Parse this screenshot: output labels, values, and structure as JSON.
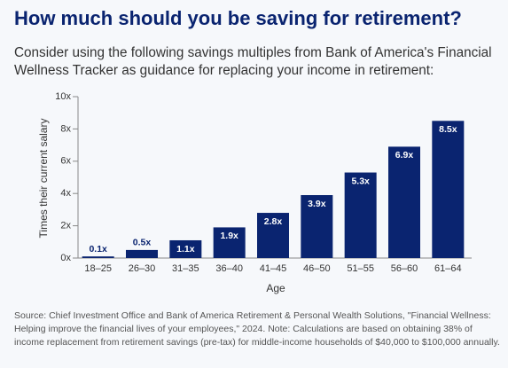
{
  "chart_data": {
    "type": "bar",
    "title": "How much should you be saving for retirement?",
    "subtitle": "Consider using the following savings multiples from Bank of America's Financial Wellness Tracker as guidance for replacing your income in retirement:",
    "categories": [
      "18–25",
      "26–30",
      "31–35",
      "36–40",
      "41–45",
      "46–50",
      "51–55",
      "56–60",
      "61–64"
    ],
    "values": [
      0.1,
      0.5,
      1.1,
      1.9,
      2.8,
      3.9,
      5.3,
      6.9,
      8.5
    ],
    "value_labels": [
      "0.1x",
      "0.5x",
      "1.1x",
      "1.9x",
      "2.8x",
      "3.9x",
      "5.3x",
      "6.9x",
      "8.5x"
    ],
    "color": "#0a2470",
    "xlabel": "Age",
    "ylabel": "Times their current salary",
    "ylim": [
      0,
      10
    ],
    "yticks": [
      {
        "value": 0,
        "label": "0x"
      },
      {
        "value": 2,
        "label": "2x"
      },
      {
        "value": 4,
        "label": "4x"
      },
      {
        "value": 6,
        "label": "6x"
      },
      {
        "value": 8,
        "label": "8x"
      },
      {
        "value": 10,
        "label": "10x"
      }
    ],
    "grid": false,
    "source": "Source: Chief Investment Office and Bank of America Retirement & Personal Wealth Solutions, \"Financial Wellness: Helping improve the financial lives of your employees,\" 2024. Note: Calculations are based on obtaining 38% of income replacement from retirement savings (pre-tax) for middle-income households of $40,000 to $100,000 annually."
  }
}
